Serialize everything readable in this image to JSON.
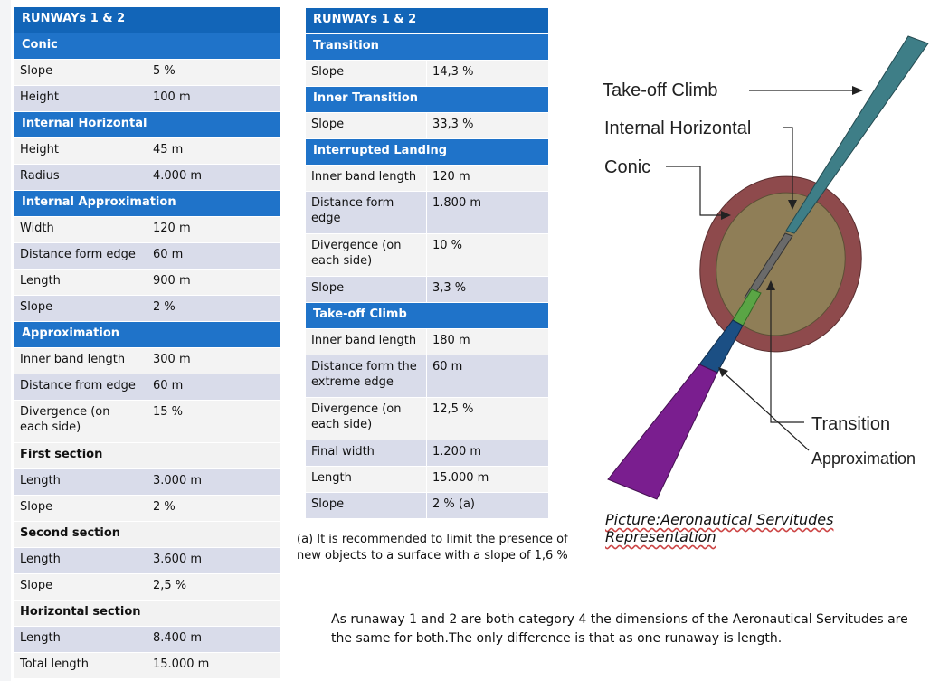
{
  "table1": {
    "title": "RUNWAYs 1 & 2",
    "sections": [
      {
        "header": "Conic",
        "rows": [
          [
            "Slope",
            "5 %"
          ],
          [
            "Height",
            "100 m"
          ]
        ]
      },
      {
        "header": "Internal Horizontal",
        "rows": [
          [
            "Height",
            "45 m"
          ],
          [
            "Radius",
            "4.000 m"
          ]
        ]
      },
      {
        "header": "Internal Approximation",
        "rows": [
          [
            "Width",
            "120 m"
          ],
          [
            "Distance form edge",
            "60 m"
          ],
          [
            "Length",
            "900 m"
          ],
          [
            "Slope",
            "2 %"
          ]
        ]
      },
      {
        "header": "Approximation",
        "rows": [
          [
            "Inner band length",
            "300 m"
          ],
          [
            "Distance from edge",
            "60 m"
          ],
          [
            "Divergence (on each side)",
            "15 %"
          ]
        ]
      }
    ],
    "first_section": {
      "label": "First section",
      "rows": [
        [
          "Length",
          "3.000 m"
        ],
        [
          "Slope",
          "2 %"
        ]
      ]
    },
    "second_section": {
      "label": "Second section",
      "rows": [
        [
          "Length",
          "3.600 m"
        ],
        [
          "Slope",
          "2,5 %"
        ]
      ]
    },
    "horizontal_section": {
      "label": "Horizontal section",
      "rows": [
        [
          "Length",
          "8.400 m"
        ],
        [
          "Total length",
          "15.000 m"
        ]
      ]
    }
  },
  "table2": {
    "title": "RUNWAYs 1 & 2",
    "transition": {
      "header": "Transition",
      "rows": [
        [
          "Slope",
          "14,3 %"
        ]
      ]
    },
    "inner_transition": {
      "header": "Inner Transition",
      "rows": [
        [
          "Slope",
          "33,3 %"
        ]
      ]
    },
    "interrupted_landing": {
      "header": "Interrupted Landing",
      "rows": [
        [
          "Inner band length",
          "120 m"
        ],
        [
          "Distance form edge",
          "1.800 m"
        ],
        [
          "Divergence (on each side)",
          "10 %"
        ],
        [
          "Slope",
          "3,3 %"
        ]
      ]
    },
    "takeoff_climb": {
      "header": "Take-off Climb",
      "rows": [
        [
          "Inner band length",
          "180 m"
        ],
        [
          "Distance form the extreme edge",
          "60 m"
        ],
        [
          "Divergence (on each side)",
          "12,5 %"
        ],
        [
          "Final width",
          "1.200 m"
        ],
        [
          "Length",
          "15.000 m"
        ],
        [
          "Slope",
          "2 % (a)"
        ]
      ]
    }
  },
  "note": "(a) It is recommended to limit the presence of new objects to a surface with a slope of 1,6 %",
  "diagram": {
    "labels": {
      "takeoff": "Take-off Climb",
      "internal_horizontal": "Internal Horizontal",
      "conic": "Conic",
      "transition": "Transition",
      "approximation": "Approximation"
    },
    "colors": {
      "conic": "#8e4a4c",
      "internal_horizontal": "#8f7e57",
      "takeoff": "#3e7e87",
      "transition_green": "#5aa545",
      "approximation_blue": "#1b4f84",
      "approximation_purple": "#7a1e8f"
    }
  },
  "caption": "Picture:Aeronautical Servitudes Representation",
  "body_text": "As runaway 1 and 2 are both category 4 the dimensions of the Aeronautical Servitudes are the same for both.The only difference is that as one runaway is length."
}
